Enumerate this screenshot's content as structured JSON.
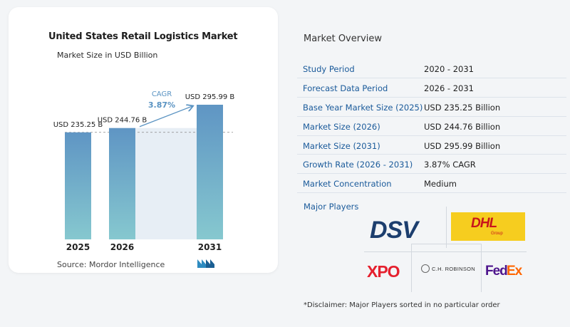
{
  "chart_data": {
    "type": "bar",
    "title": "United States Retail Logistics Market",
    "subtitle": "Market Size in USD Billion",
    "categories": [
      "2025",
      "2026",
      "2031"
    ],
    "values": [
      235.25,
      244.76,
      295.99
    ],
    "data_labels": [
      "USD 235.25 B",
      "USD 244.76 B",
      "USD 295.99 B"
    ],
    "cagr_label": "CAGR",
    "cagr_value": "3.87%",
    "y_axis_visible": false,
    "grid": false,
    "colors": {
      "bar_top": "#5f95c4",
      "bar_bottom": "#86c8cf",
      "shade": "#e7eef5",
      "cagr": "#5a93c2",
      "reference_line": "#888888"
    }
  },
  "source": "Source:  Mordor Intelligence",
  "overview": {
    "title": "Market Overview",
    "rows": [
      {
        "key": "Study Period",
        "value": "2020 - 2031"
      },
      {
        "key": "Forecast Data Period",
        "value": "2026 - 2031"
      },
      {
        "key": "Base Year Market Size (2025)",
        "value": "USD 235.25 Billion"
      },
      {
        "key": "Market Size (2026)",
        "value": "USD 244.76 Billion"
      },
      {
        "key": "Market Size (2031)",
        "value": "USD 295.99 Billion"
      },
      {
        "key": "Growth Rate (2026 - 2031)",
        "value": "3.87% CAGR"
      },
      {
        "key": "Market Concentration",
        "value": "Medium"
      }
    ],
    "major_players_label": "Major Players",
    "players": {
      "dsv": "DSV",
      "dhl": "DHL",
      "dhl_sub": "Group",
      "xpo": "XPO",
      "chr": "C.H. ROBINSON",
      "fedex_fed": "Fed",
      "fedex_ex": "Ex"
    },
    "disclaimer": "*Disclaimer: Major Players sorted in no particular order"
  }
}
